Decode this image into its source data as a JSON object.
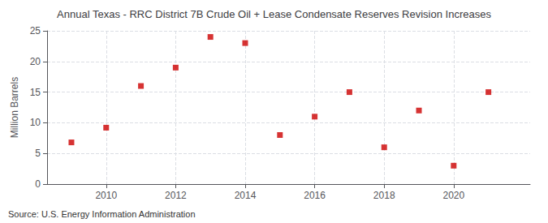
{
  "chart_data": {
    "type": "scatter",
    "title": "Annual Texas - RRC District 7B Crude Oil + Lease Condensate Reserves Revision Increases",
    "ylabel": "Million Barrels",
    "annotation": "Source: U.S. Energy Information Administration",
    "x": [
      2009,
      2010,
      2011,
      2012,
      2013,
      2014,
      2015,
      2016,
      2017,
      2018,
      2019,
      2020,
      2021
    ],
    "values": [
      6.8,
      9.2,
      16.0,
      19.0,
      24.0,
      23.0,
      8.0,
      11.0,
      15.0,
      6.0,
      12.0,
      3.0,
      15.0
    ],
    "color": "#cc0000",
    "marker": "square",
    "xlim": [
      2008.3,
      2022.2
    ],
    "xticks": [
      2010,
      2012,
      2014,
      2016,
      2018,
      2020
    ],
    "ylim": [
      0,
      25
    ],
    "yticks": [
      0,
      5,
      10,
      15,
      20,
      25
    ],
    "grid": true
  }
}
